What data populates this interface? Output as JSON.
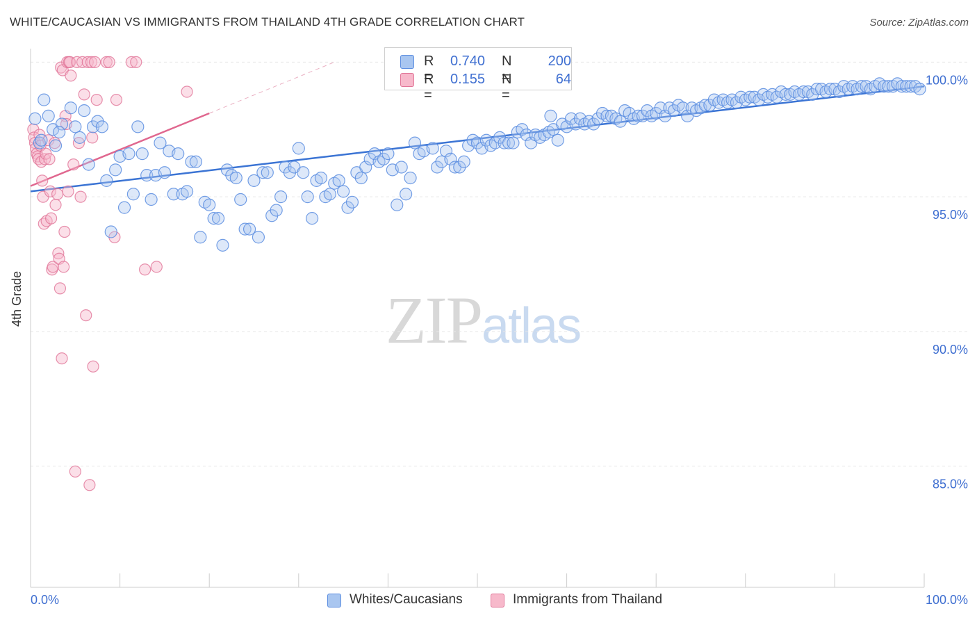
{
  "header": {
    "title": "WHITE/CAUCASIAN VS IMMIGRANTS FROM THAILAND 4TH GRADE CORRELATION CHART",
    "source": "Source: ZipAtlas.com"
  },
  "watermark": {
    "zip": "ZIP",
    "atlas": "atlas"
  },
  "legend": {
    "rows": [
      {
        "r_label": "R =",
        "r_value": "0.740",
        "n_label": "N =",
        "n_value": "200",
        "color": "#a9c6f0",
        "border": "#5b8de0"
      },
      {
        "r_label": "R =",
        "r_value": "0.155",
        "n_label": "N =",
        "n_value": "64",
        "color": "#f7b9cb",
        "border": "#e17598"
      }
    ]
  },
  "bottom_legend": [
    {
      "label": "Whites/Caucasians",
      "color": "#a9c6f0",
      "border": "#5b8de0"
    },
    {
      "label": "Immigrants from Thailand",
      "color": "#f7b9cb",
      "border": "#e17598"
    }
  ],
  "chart_data": {
    "type": "scatter",
    "title": "WHITE/CAUCASIAN VS IMMIGRANTS FROM THAILAND 4TH GRADE CORRELATION CHART",
    "xlabel": "",
    "ylabel": "4th Grade",
    "xlim": [
      0,
      100
    ],
    "ylim": [
      80.5,
      100.5
    ],
    "x_tick_labels": [
      "0.0%",
      "100.0%"
    ],
    "y_ticks": [
      85,
      90,
      95,
      100
    ],
    "y_tick_labels": [
      "85.0%",
      "90.0%",
      "95.0%",
      "100.0%"
    ],
    "grid": true,
    "colors": {
      "blue": "#5b8de0",
      "blue_fill": "#a9c6f0",
      "pink": "#e17598",
      "pink_fill": "#f7b9cb",
      "blue_line": "#3b74d4",
      "pink_line": "#e0678f",
      "tick_text": "#3f6fd1"
    },
    "series": [
      {
        "name": "Whites/Caucasians",
        "trend": {
          "x": [
            0,
            100
          ],
          "y": [
            95.2,
            99.1
          ]
        },
        "points": [
          [
            1.5,
            98.6
          ],
          [
            2.0,
            98.0
          ],
          [
            2.5,
            97.5
          ],
          [
            3.5,
            97.7
          ],
          [
            0.5,
            97.9
          ],
          [
            1.0,
            97.0
          ],
          [
            4.5,
            98.3
          ],
          [
            5.0,
            97.6
          ],
          [
            5.5,
            97.2
          ],
          [
            6.0,
            98.2
          ],
          [
            6.5,
            96.2
          ],
          [
            7.0,
            97.6
          ],
          [
            7.5,
            97.8
          ],
          [
            8.0,
            97.6
          ],
          [
            8.5,
            95.6
          ],
          [
            9.0,
            93.7
          ],
          [
            9.5,
            96.0
          ],
          [
            10.0,
            96.5
          ],
          [
            10.5,
            94.6
          ],
          [
            11.0,
            96.6
          ],
          [
            11.5,
            95.1
          ],
          [
            12.0,
            97.6
          ],
          [
            12.5,
            96.6
          ],
          [
            13.0,
            95.8
          ],
          [
            13.5,
            94.9
          ],
          [
            14.0,
            95.8
          ],
          [
            14.5,
            97.0
          ],
          [
            15.0,
            95.9
          ],
          [
            15.5,
            96.7
          ],
          [
            16.0,
            95.1
          ],
          [
            16.5,
            96.6
          ],
          [
            17.0,
            95.1
          ],
          [
            17.5,
            95.2
          ],
          [
            18.0,
            96.3
          ],
          [
            18.5,
            96.3
          ],
          [
            19.0,
            93.5
          ],
          [
            19.5,
            94.8
          ],
          [
            20.0,
            94.7
          ],
          [
            20.5,
            94.2
          ],
          [
            21.0,
            94.2
          ],
          [
            21.5,
            93.2
          ],
          [
            22.0,
            96.0
          ],
          [
            22.5,
            95.8
          ],
          [
            23.0,
            95.7
          ],
          [
            23.5,
            94.9
          ],
          [
            24.0,
            93.8
          ],
          [
            24.5,
            93.8
          ],
          [
            25.0,
            95.6
          ],
          [
            25.5,
            93.5
          ],
          [
            26.0,
            95.9
          ],
          [
            26.5,
            95.9
          ],
          [
            27.0,
            94.3
          ],
          [
            27.5,
            94.5
          ],
          [
            28.0,
            95.0
          ],
          [
            28.5,
            96.1
          ],
          [
            29.0,
            95.9
          ],
          [
            29.5,
            96.1
          ],
          [
            30.0,
            96.8
          ],
          [
            30.5,
            95.9
          ],
          [
            31.0,
            95.0
          ],
          [
            31.5,
            94.2
          ],
          [
            32.0,
            95.6
          ],
          [
            32.5,
            95.7
          ],
          [
            33.0,
            95.0
          ],
          [
            33.5,
            95.1
          ],
          [
            34.0,
            95.5
          ],
          [
            34.5,
            95.6
          ],
          [
            35.0,
            95.2
          ],
          [
            35.5,
            94.6
          ],
          [
            36.0,
            94.8
          ],
          [
            36.5,
            95.9
          ],
          [
            37.0,
            95.7
          ],
          [
            37.5,
            96.1
          ],
          [
            38.0,
            96.4
          ],
          [
            38.5,
            96.6
          ],
          [
            39.0,
            96.3
          ],
          [
            39.5,
            96.4
          ],
          [
            40.0,
            96.6
          ],
          [
            40.5,
            96.0
          ],
          [
            41.0,
            94.7
          ],
          [
            41.5,
            96.1
          ],
          [
            42.0,
            95.1
          ],
          [
            42.5,
            95.7
          ],
          [
            43.0,
            97.0
          ],
          [
            43.5,
            96.6
          ],
          [
            44.0,
            96.7
          ],
          [
            45.0,
            96.8
          ],
          [
            45.5,
            96.1
          ],
          [
            46.0,
            96.3
          ],
          [
            46.5,
            96.7
          ],
          [
            47.0,
            96.4
          ],
          [
            47.5,
            96.1
          ],
          [
            48.0,
            96.1
          ],
          [
            48.5,
            96.3
          ],
          [
            49.0,
            96.9
          ],
          [
            49.5,
            97.1
          ],
          [
            50.0,
            97.0
          ],
          [
            50.5,
            96.8
          ],
          [
            51.0,
            97.1
          ],
          [
            51.5,
            96.9
          ],
          [
            52.0,
            97.0
          ],
          [
            52.5,
            97.2
          ],
          [
            53.0,
            97.0
          ],
          [
            53.5,
            97.0
          ],
          [
            54.0,
            97.0
          ],
          [
            54.5,
            97.4
          ],
          [
            55.0,
            97.5
          ],
          [
            55.5,
            97.3
          ],
          [
            56.0,
            97.0
          ],
          [
            56.5,
            97.3
          ],
          [
            57.0,
            97.2
          ],
          [
            57.5,
            97.3
          ],
          [
            58.0,
            97.4
          ],
          [
            58.5,
            97.5
          ],
          [
            59.0,
            97.1
          ],
          [
            59.5,
            97.7
          ],
          [
            60.0,
            97.6
          ],
          [
            60.5,
            97.9
          ],
          [
            61.0,
            97.7
          ],
          [
            61.5,
            97.9
          ],
          [
            62.0,
            97.7
          ],
          [
            62.5,
            97.8
          ],
          [
            63.0,
            97.7
          ],
          [
            63.5,
            97.9
          ],
          [
            64.0,
            98.1
          ],
          [
            64.5,
            98.0
          ],
          [
            65.0,
            98.0
          ],
          [
            65.5,
            97.9
          ],
          [
            66.0,
            97.8
          ],
          [
            66.5,
            98.2
          ],
          [
            67.0,
            98.1
          ],
          [
            67.5,
            97.9
          ],
          [
            68.0,
            98.0
          ],
          [
            68.5,
            98.0
          ],
          [
            69.0,
            98.2
          ],
          [
            69.5,
            98.0
          ],
          [
            70.0,
            98.1
          ],
          [
            70.5,
            98.3
          ],
          [
            71.0,
            98.0
          ],
          [
            71.5,
            98.3
          ],
          [
            72.0,
            98.2
          ],
          [
            72.5,
            98.4
          ],
          [
            73.0,
            98.3
          ],
          [
            73.5,
            98.0
          ],
          [
            74.0,
            98.3
          ],
          [
            74.5,
            98.2
          ],
          [
            75.0,
            98.3
          ],
          [
            75.5,
            98.4
          ],
          [
            76.0,
            98.4
          ],
          [
            76.5,
            98.6
          ],
          [
            77.0,
            98.5
          ],
          [
            77.5,
            98.6
          ],
          [
            78.0,
            98.5
          ],
          [
            78.5,
            98.6
          ],
          [
            79.0,
            98.5
          ],
          [
            79.5,
            98.7
          ],
          [
            80.0,
            98.6
          ],
          [
            80.5,
            98.7
          ],
          [
            81.0,
            98.7
          ],
          [
            81.5,
            98.6
          ],
          [
            82.0,
            98.8
          ],
          [
            82.5,
            98.7
          ],
          [
            83.0,
            98.8
          ],
          [
            83.5,
            98.7
          ],
          [
            84.0,
            98.9
          ],
          [
            84.5,
            98.8
          ],
          [
            85.0,
            98.8
          ],
          [
            85.5,
            98.9
          ],
          [
            86.0,
            98.8
          ],
          [
            86.5,
            98.9
          ],
          [
            87.0,
            98.9
          ],
          [
            87.5,
            98.8
          ],
          [
            88.0,
            99.0
          ],
          [
            88.5,
            99.0
          ],
          [
            89.0,
            98.9
          ],
          [
            89.5,
            99.0
          ],
          [
            90.0,
            99.0
          ],
          [
            90.5,
            98.9
          ],
          [
            91.0,
            99.1
          ],
          [
            91.5,
            99.0
          ],
          [
            92.0,
            99.1
          ],
          [
            92.5,
            99.0
          ],
          [
            93.0,
            99.1
          ],
          [
            93.5,
            99.1
          ],
          [
            94.0,
            99.0
          ],
          [
            94.5,
            99.1
          ],
          [
            95.0,
            99.2
          ],
          [
            95.5,
            99.1
          ],
          [
            96.0,
            99.1
          ],
          [
            96.5,
            99.1
          ],
          [
            97.0,
            99.2
          ],
          [
            97.5,
            99.1
          ],
          [
            98.0,
            99.1
          ],
          [
            98.5,
            99.1
          ],
          [
            99.0,
            99.1
          ],
          [
            99.5,
            99.0
          ],
          [
            1.2,
            97.1
          ],
          [
            2.8,
            96.9
          ],
          [
            3.2,
            97.4
          ],
          [
            58.2,
            98.0
          ]
        ]
      },
      {
        "name": "Immigrants from Thailand",
        "trend": {
          "x": [
            0,
            20
          ],
          "y": [
            95.4,
            98.1
          ],
          "dashed_to": {
            "x": 34,
            "y": 100.0
          }
        },
        "points": [
          [
            0.3,
            97.5
          ],
          [
            0.4,
            97.2
          ],
          [
            0.5,
            97.0
          ],
          [
            0.6,
            96.8
          ],
          [
            0.7,
            96.6
          ],
          [
            0.8,
            96.5
          ],
          [
            0.9,
            96.4
          ],
          [
            1.0,
            97.3
          ],
          [
            1.1,
            96.9
          ],
          [
            1.2,
            96.3
          ],
          [
            1.3,
            95.6
          ],
          [
            1.4,
            95.0
          ],
          [
            1.5,
            94.0
          ],
          [
            1.6,
            96.4
          ],
          [
            1.7,
            96.6
          ],
          [
            1.8,
            94.1
          ],
          [
            2.0,
            97.1
          ],
          [
            2.1,
            96.4
          ],
          [
            2.2,
            95.2
          ],
          [
            2.3,
            94.2
          ],
          [
            2.4,
            92.3
          ],
          [
            2.5,
            92.4
          ],
          [
            2.7,
            97.0
          ],
          [
            2.8,
            94.7
          ],
          [
            3.0,
            95.1
          ],
          [
            3.1,
            92.9
          ],
          [
            3.2,
            92.7
          ],
          [
            3.3,
            91.6
          ],
          [
            3.4,
            99.8
          ],
          [
            3.5,
            89.0
          ],
          [
            3.6,
            99.7
          ],
          [
            3.7,
            92.4
          ],
          [
            3.8,
            93.7
          ],
          [
            3.9,
            98.0
          ],
          [
            4.0,
            97.7
          ],
          [
            4.1,
            100.0
          ],
          [
            4.2,
            95.2
          ],
          [
            4.3,
            100.0
          ],
          [
            4.4,
            100.0
          ],
          [
            4.5,
            99.5
          ],
          [
            4.8,
            96.2
          ],
          [
            5.0,
            84.8
          ],
          [
            5.2,
            100.0
          ],
          [
            5.4,
            97.0
          ],
          [
            5.6,
            95.0
          ],
          [
            5.8,
            100.0
          ],
          [
            6.0,
            98.8
          ],
          [
            6.2,
            90.6
          ],
          [
            6.4,
            100.0
          ],
          [
            6.6,
            84.3
          ],
          [
            6.8,
            100.0
          ],
          [
            6.9,
            97.2
          ],
          [
            7.0,
            88.7
          ],
          [
            7.2,
            100.0
          ],
          [
            7.4,
            98.6
          ],
          [
            8.5,
            100.0
          ],
          [
            8.8,
            100.0
          ],
          [
            9.4,
            93.5
          ],
          [
            9.6,
            98.6
          ],
          [
            11.3,
            100.0
          ],
          [
            11.8,
            100.0
          ],
          [
            12.8,
            92.3
          ],
          [
            14.1,
            92.4
          ],
          [
            17.5,
            98.9
          ]
        ]
      }
    ]
  }
}
